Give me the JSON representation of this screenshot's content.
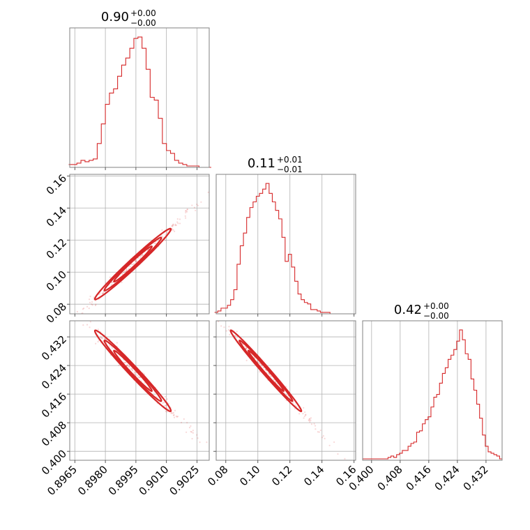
{
  "chart_data": {
    "type": "corner",
    "color": "#d62728",
    "parameters": [
      {
        "title": "0.90",
        "title_plus": "+0.00",
        "title_minus": "−0.00",
        "range": [
          0.89625,
          0.9031
        ],
        "ticks": [
          0.8965,
          0.898,
          0.8995,
          0.901,
          0.9025
        ],
        "tick_labels": [
          "0.8965",
          "0.8980",
          "0.8995",
          "0.9010",
          "0.9025"
        ],
        "hist_x": [
          0.8963,
          0.8965,
          0.8967,
          0.8969,
          0.8971,
          0.8973,
          0.8975,
          0.8977,
          0.8979,
          0.8981,
          0.8983,
          0.8985,
          0.8987,
          0.8989,
          0.8991,
          0.8993,
          0.8995,
          0.8997,
          0.8999,
          0.9001,
          0.9003,
          0.9005,
          0.9007,
          0.9009,
          0.9011,
          0.9013,
          0.9015,
          0.9017,
          0.9019,
          0.9021,
          0.9023,
          0.9025,
          0.9027,
          0.9029,
          0.9031
        ],
        "hist_y": [
          0.02,
          0.02,
          0.03,
          0.05,
          0.04,
          0.05,
          0.06,
          0.17,
          0.31,
          0.45,
          0.53,
          0.56,
          0.65,
          0.73,
          0.78,
          0.85,
          0.92,
          0.93,
          0.85,
          0.7,
          0.5,
          0.48,
          0.35,
          0.17,
          0.12,
          0.1,
          0.05,
          0.03,
          0.02,
          0.01,
          0.01,
          0.01,
          0.0,
          0.0,
          0.0
        ]
      },
      {
        "title": "0.11",
        "title_plus": "+0.01",
        "title_minus": "−0.01",
        "range": [
          0.074,
          0.161
        ],
        "ticks": [
          0.08,
          0.1,
          0.12,
          0.14,
          0.16
        ],
        "tick_labels": [
          "0.08",
          "0.10",
          "0.12",
          "0.14",
          "0.16"
        ],
        "hist_x": [
          0.074,
          0.076,
          0.078,
          0.08,
          0.082,
          0.084,
          0.086,
          0.088,
          0.09,
          0.092,
          0.094,
          0.096,
          0.098,
          0.1,
          0.102,
          0.104,
          0.106,
          0.108,
          0.11,
          0.112,
          0.114,
          0.116,
          0.118,
          0.12,
          0.122,
          0.124,
          0.126,
          0.128,
          0.13,
          0.132,
          0.134,
          0.136,
          0.138,
          0.14,
          0.142,
          0.144,
          0.146,
          0.148,
          0.15,
          0.152,
          0.154,
          0.156,
          0.158,
          0.16
        ],
        "hist_y": [
          0.01,
          0.02,
          0.04,
          0.04,
          0.06,
          0.1,
          0.17,
          0.35,
          0.48,
          0.57,
          0.68,
          0.75,
          0.79,
          0.83,
          0.85,
          0.88,
          0.92,
          0.85,
          0.79,
          0.73,
          0.67,
          0.54,
          0.37,
          0.42,
          0.33,
          0.23,
          0.14,
          0.1,
          0.08,
          0.07,
          0.03,
          0.03,
          0.02,
          0.01,
          0.01,
          0.01,
          0.0,
          0.0,
          0.0,
          0.0,
          0.0,
          0.0,
          0.0,
          0.0
        ]
      },
      {
        "title": "0.42",
        "title_plus": "+0.00",
        "title_minus": "−0.00",
        "range": [
          0.3975,
          0.4365
        ],
        "ticks": [
          0.4,
          0.408,
          0.416,
          0.424,
          0.432
        ],
        "tick_labels": [
          "0.400",
          "0.408",
          "0.416",
          "0.424",
          "0.432"
        ],
        "hist_x": [
          0.3978,
          0.3986,
          0.3994,
          0.4002,
          0.401,
          0.4018,
          0.4026,
          0.4034,
          0.4042,
          0.405,
          0.4058,
          0.4066,
          0.4074,
          0.4082,
          0.409,
          0.4098,
          0.4106,
          0.4114,
          0.4122,
          0.413,
          0.4138,
          0.4146,
          0.4154,
          0.4162,
          0.417,
          0.4178,
          0.4186,
          0.4194,
          0.4202,
          0.421,
          0.4218,
          0.4226,
          0.4234,
          0.4242,
          0.425,
          0.4258,
          0.4266,
          0.4274,
          0.4282,
          0.429,
          0.4298,
          0.4306,
          0.4314,
          0.4322,
          0.433,
          0.4338,
          0.4346,
          0.4354,
          0.4362
        ],
        "hist_y": [
          0.01,
          0.01,
          0.01,
          0.01,
          0.01,
          0.01,
          0.01,
          0.01,
          0.01,
          0.02,
          0.03,
          0.02,
          0.04,
          0.05,
          0.07,
          0.07,
          0.1,
          0.12,
          0.13,
          0.2,
          0.21,
          0.26,
          0.29,
          0.31,
          0.38,
          0.45,
          0.47,
          0.55,
          0.62,
          0.66,
          0.72,
          0.75,
          0.79,
          0.85,
          0.93,
          0.86,
          0.76,
          0.72,
          0.58,
          0.5,
          0.4,
          0.3,
          0.18,
          0.1,
          0.06,
          0.05,
          0.04,
          0.03,
          0.01
        ]
      }
    ],
    "grid": true,
    "xlabel": "",
    "ylabel": ""
  }
}
